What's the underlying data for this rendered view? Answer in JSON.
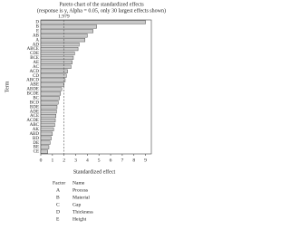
{
  "chart_data": {
    "type": "bar",
    "orientation": "horizontal",
    "title": "Pareto chart of the standardized effects",
    "subtitle": "(response is y, Alpha = 0.05, only 30 largest effects shown)",
    "x_label": "Standardized effect",
    "y_label": "Term",
    "reference_line": 1.979,
    "categories": [
      "D",
      "B",
      "E",
      "AB",
      "A",
      "AD",
      "ABCE",
      "CDE",
      "BCE",
      "AE",
      "AC",
      "ACD",
      "CD",
      "ABCD",
      "ABE",
      "ABDE",
      "BCDE",
      "BC",
      "BCD",
      "BDE",
      "ADE",
      "ACE",
      "ACDE",
      "ABC",
      "AK",
      "ABD",
      "BD",
      "DE",
      "BE",
      "CE"
    ],
    "values": [
      9.0,
      4.8,
      4.5,
      4.0,
      3.8,
      3.3,
      3.2,
      2.9,
      2.8,
      2.7,
      2.6,
      2.3,
      2.2,
      2.1,
      2.0,
      1.8,
      1.7,
      1.6,
      1.5,
      1.4,
      1.35,
      1.3,
      1.25,
      1.2,
      1.1,
      1.0,
      0.9,
      0.8,
      0.7,
      0.6
    ],
    "color": "#c8c8c8",
    "xlim": [
      0,
      9.5
    ],
    "xticks": [
      0,
      1,
      2,
      3,
      4,
      5,
      6,
      7,
      8,
      9
    ],
    "legend_table": {
      "header": [
        "Factor",
        "Name"
      ],
      "rows": [
        [
          "A",
          "Process"
        ],
        [
          "B",
          "Material"
        ],
        [
          "C",
          "Gap"
        ],
        [
          "D",
          "Thickness"
        ],
        [
          "E",
          "Height"
        ]
      ]
    }
  }
}
